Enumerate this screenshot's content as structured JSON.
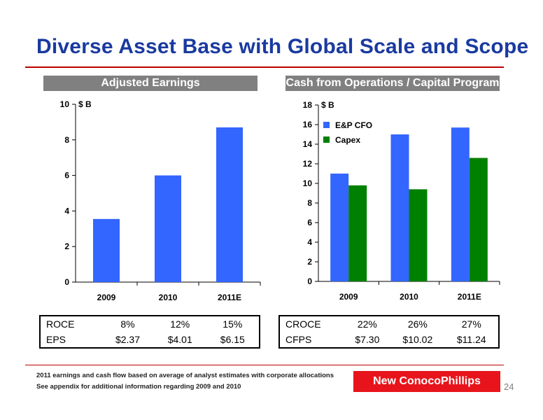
{
  "title": "Diverse Asset Base with Global Scale and Scope",
  "left_header": "Adjusted Earnings",
  "right_header": "Cash from Operations / Capital Program",
  "left_table": {
    "rows": [
      {
        "label": "ROCE",
        "values": [
          "8%",
          "12%",
          "15%"
        ]
      },
      {
        "label": "EPS",
        "values": [
          "$2.37",
          "$4.01",
          "$6.15"
        ]
      }
    ]
  },
  "right_table": {
    "rows": [
      {
        "label": "CROCE",
        "values": [
          "22%",
          "26%",
          "27%"
        ]
      },
      {
        "label": "CFPS",
        "values": [
          "$7.30",
          "$10.02",
          "$11.24"
        ]
      }
    ]
  },
  "footnotes": [
    "2011 earnings and cash flow based on average of analyst estimates with corporate allocations",
    "See appendix for additional information regarding 2009 and 2010"
  ],
  "brand": "New ConocoPhillips",
  "page_number": "24",
  "chart_data": [
    {
      "type": "bar",
      "categories": [
        "2009",
        "2010",
        "2011E"
      ],
      "series": [
        {
          "values": [
            3.55,
            6.0,
            8.7
          ],
          "color": "#3366ff"
        }
      ],
      "unit_label": "$ B",
      "ylim": [
        0,
        10
      ],
      "yticks": [
        0,
        2,
        4,
        6,
        8,
        10
      ]
    },
    {
      "type": "bar",
      "categories": [
        "2009",
        "2010",
        "2011E"
      ],
      "series": [
        {
          "name": "E&P CFO",
          "values": [
            11.0,
            15.0,
            15.7
          ],
          "color": "#3366ff"
        },
        {
          "name": "Capex",
          "values": [
            9.8,
            9.4,
            12.6
          ],
          "color": "#008000"
        }
      ],
      "unit_label": "$ B",
      "ylim": [
        0,
        18
      ],
      "yticks": [
        0,
        2,
        4,
        6,
        8,
        10,
        12,
        14,
        16,
        18
      ],
      "legend": "top-left"
    }
  ]
}
